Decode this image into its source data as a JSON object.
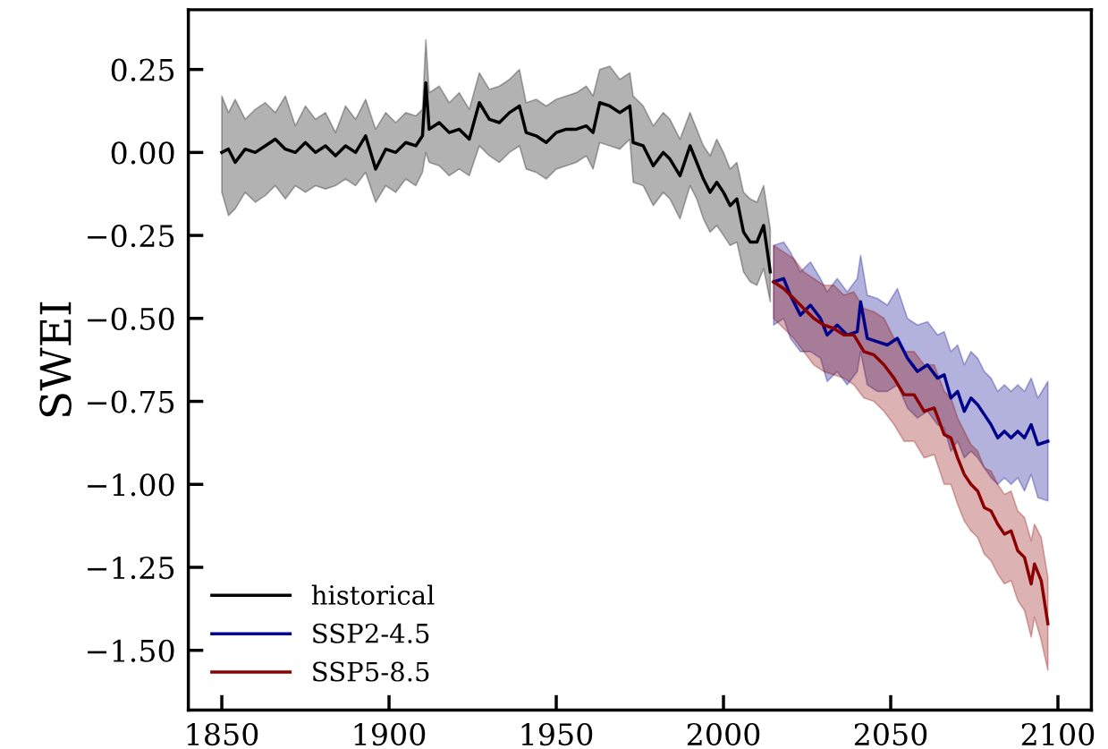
{
  "chart_data": {
    "type": "line",
    "ylabel": "SWEI",
    "xlim": [
      1840,
      2110
    ],
    "ylim": [
      -1.68,
      0.43
    ],
    "xticks": [
      1850,
      1900,
      1950,
      2000,
      2050,
      2100
    ],
    "yticks": [
      {
        "value": 0.25,
        "label": "0.25"
      },
      {
        "value": 0.0,
        "label": "0.00"
      },
      {
        "value": -0.25,
        "label": "−0.25"
      },
      {
        "value": -0.5,
        "label": "−0.50"
      },
      {
        "value": -0.75,
        "label": "−0.75"
      },
      {
        "value": -1.0,
        "label": "−1.00"
      },
      {
        "value": -1.25,
        "label": "−1.25"
      },
      {
        "value": -1.5,
        "label": "−1.50"
      }
    ],
    "grid": false,
    "legend": "bottom left",
    "marker": "none",
    "line_style": "solid",
    "series": [
      {
        "name": "historical",
        "color": "#000000",
        "x": [
          1850,
          1852,
          1854,
          1857,
          1860,
          1863,
          1866,
          1869,
          1872,
          1875,
          1878,
          1881,
          1884,
          1887,
          1890,
          1893,
          1896,
          1899,
          1902,
          1905,
          1908,
          1910,
          1911,
          1912,
          1915,
          1918,
          1921,
          1924,
          1927,
          1930,
          1933,
          1936,
          1939,
          1941,
          1944,
          1947,
          1950,
          1953,
          1956,
          1959,
          1961,
          1963,
          1966,
          1969,
          1972,
          1973,
          1976,
          1979,
          1982,
          1984,
          1987,
          1990,
          1992,
          1994,
          1996,
          1998,
          2000,
          2002,
          2004,
          2006,
          2008,
          2010,
          2012,
          2014
        ],
        "values": [
          0.0,
          0.01,
          -0.03,
          0.01,
          0.0,
          0.02,
          0.04,
          0.01,
          0.0,
          0.03,
          0.0,
          0.02,
          -0.01,
          0.02,
          0.0,
          0.05,
          -0.05,
          0.01,
          0.0,
          0.03,
          0.02,
          0.05,
          0.21,
          0.07,
          0.09,
          0.06,
          0.07,
          0.04,
          0.15,
          0.1,
          0.09,
          0.12,
          0.14,
          0.06,
          0.05,
          0.03,
          0.06,
          0.07,
          0.07,
          0.08,
          0.06,
          0.15,
          0.14,
          0.12,
          0.14,
          0.03,
          0.02,
          -0.04,
          0.0,
          -0.02,
          -0.07,
          0.02,
          -0.03,
          -0.08,
          -0.12,
          -0.09,
          -0.12,
          -0.16,
          -0.14,
          -0.24,
          -0.27,
          -0.27,
          -0.22,
          -0.36
        ],
        "upper": [
          0.17,
          0.12,
          0.16,
          0.1,
          0.13,
          0.15,
          0.12,
          0.17,
          0.08,
          0.14,
          0.1,
          0.12,
          0.06,
          0.14,
          0.1,
          0.16,
          0.07,
          0.12,
          0.09,
          0.12,
          0.11,
          0.13,
          0.34,
          0.18,
          0.2,
          0.15,
          0.18,
          0.13,
          0.24,
          0.19,
          0.2,
          0.22,
          0.25,
          0.15,
          0.16,
          0.14,
          0.16,
          0.17,
          0.18,
          0.2,
          0.17,
          0.25,
          0.26,
          0.22,
          0.24,
          0.17,
          0.14,
          0.08,
          0.12,
          0.1,
          0.04,
          0.12,
          0.07,
          0.02,
          -0.01,
          0.04,
          0.0,
          -0.05,
          -0.03,
          -0.12,
          -0.14,
          -0.15,
          -0.1,
          -0.23
        ],
        "lower": [
          -0.12,
          -0.19,
          -0.17,
          -0.12,
          -0.15,
          -0.13,
          -0.1,
          -0.14,
          -0.1,
          -0.12,
          -0.1,
          -0.11,
          -0.1,
          -0.08,
          -0.1,
          -0.06,
          -0.15,
          -0.1,
          -0.12,
          -0.08,
          -0.1,
          -0.06,
          0.0,
          -0.03,
          -0.04,
          -0.07,
          -0.05,
          -0.07,
          0.02,
          -0.01,
          -0.03,
          0.0,
          0.02,
          -0.05,
          -0.06,
          -0.08,
          -0.05,
          -0.04,
          -0.03,
          -0.01,
          -0.05,
          0.03,
          0.02,
          0.01,
          0.04,
          -0.09,
          -0.1,
          -0.16,
          -0.12,
          -0.14,
          -0.2,
          -0.1,
          -0.14,
          -0.2,
          -0.24,
          -0.22,
          -0.25,
          -0.28,
          -0.27,
          -0.36,
          -0.39,
          -0.4,
          -0.35,
          -0.45
        ]
      },
      {
        "name": "SSP2-4.5",
        "color": "#00008b",
        "x": [
          2015,
          2018,
          2020,
          2023,
          2026,
          2029,
          2031,
          2034,
          2037,
          2040,
          2041,
          2043,
          2046,
          2049,
          2052,
          2055,
          2058,
          2061,
          2064,
          2066,
          2068,
          2070,
          2072,
          2074,
          2076,
          2078,
          2080,
          2082,
          2084,
          2086,
          2088,
          2090,
          2092,
          2094,
          2097
        ],
        "values": [
          -0.39,
          -0.38,
          -0.43,
          -0.49,
          -0.46,
          -0.5,
          -0.55,
          -0.52,
          -0.55,
          -0.54,
          -0.45,
          -0.56,
          -0.57,
          -0.58,
          -0.56,
          -0.62,
          -0.66,
          -0.64,
          -0.68,
          -0.67,
          -0.74,
          -0.72,
          -0.78,
          -0.74,
          -0.76,
          -0.79,
          -0.82,
          -0.86,
          -0.84,
          -0.86,
          -0.84,
          -0.86,
          -0.82,
          -0.88,
          -0.87
        ],
        "upper": [
          -0.28,
          -0.27,
          -0.3,
          -0.36,
          -0.33,
          -0.38,
          -0.42,
          -0.38,
          -0.42,
          -0.38,
          -0.31,
          -0.43,
          -0.44,
          -0.46,
          -0.41,
          -0.5,
          -0.52,
          -0.51,
          -0.55,
          -0.54,
          -0.6,
          -0.58,
          -0.64,
          -0.6,
          -0.62,
          -0.66,
          -0.68,
          -0.72,
          -0.7,
          -0.72,
          -0.7,
          -0.72,
          -0.68,
          -0.74,
          -0.69
        ],
        "lower": [
          -0.52,
          -0.5,
          -0.56,
          -0.6,
          -0.6,
          -0.62,
          -0.69,
          -0.66,
          -0.7,
          -0.66,
          -0.6,
          -0.7,
          -0.72,
          -0.72,
          -0.7,
          -0.77,
          -0.8,
          -0.78,
          -0.82,
          -0.83,
          -0.9,
          -0.87,
          -0.92,
          -0.9,
          -0.92,
          -0.95,
          -0.98,
          -1.0,
          -0.98,
          -1.0,
          -0.98,
          -1.02,
          -0.97,
          -1.04,
          -1.05
        ]
      },
      {
        "name": "SSP5-8.5",
        "color": "#8b0000",
        "x": [
          2015,
          2018,
          2021,
          2024,
          2027,
          2030,
          2033,
          2036,
          2039,
          2042,
          2045,
          2048,
          2051,
          2054,
          2057,
          2060,
          2063,
          2066,
          2068,
          2070,
          2072,
          2074,
          2076,
          2078,
          2080,
          2082,
          2084,
          2086,
          2088,
          2090,
          2092,
          2093,
          2095,
          2097
        ],
        "values": [
          -0.39,
          -0.41,
          -0.44,
          -0.47,
          -0.5,
          -0.52,
          -0.53,
          -0.55,
          -0.55,
          -0.6,
          -0.61,
          -0.64,
          -0.68,
          -0.73,
          -0.73,
          -0.78,
          -0.77,
          -0.85,
          -0.86,
          -0.92,
          -0.97,
          -1.0,
          -1.02,
          -1.07,
          -1.08,
          -1.12,
          -1.15,
          -1.14,
          -1.2,
          -1.22,
          -1.3,
          -1.24,
          -1.29,
          -1.42
        ],
        "upper": [
          -0.28,
          -0.3,
          -0.32,
          -0.36,
          -0.38,
          -0.4,
          -0.4,
          -0.43,
          -0.42,
          -0.47,
          -0.48,
          -0.5,
          -0.56,
          -0.6,
          -0.6,
          -0.64,
          -0.64,
          -0.72,
          -0.74,
          -0.8,
          -0.84,
          -0.88,
          -0.9,
          -0.95,
          -0.96,
          -1.0,
          -1.03,
          -1.02,
          -1.08,
          -1.1,
          -1.17,
          -1.12,
          -1.16,
          -1.28
        ],
        "lower": [
          -0.5,
          -0.53,
          -0.56,
          -0.6,
          -0.64,
          -0.66,
          -0.67,
          -0.68,
          -0.7,
          -0.74,
          -0.75,
          -0.78,
          -0.82,
          -0.87,
          -0.87,
          -0.92,
          -0.91,
          -1.0,
          -1.0,
          -1.06,
          -1.11,
          -1.14,
          -1.16,
          -1.21,
          -1.23,
          -1.27,
          -1.3,
          -1.29,
          -1.35,
          -1.38,
          -1.46,
          -1.4,
          -1.47,
          -1.56
        ]
      }
    ]
  }
}
